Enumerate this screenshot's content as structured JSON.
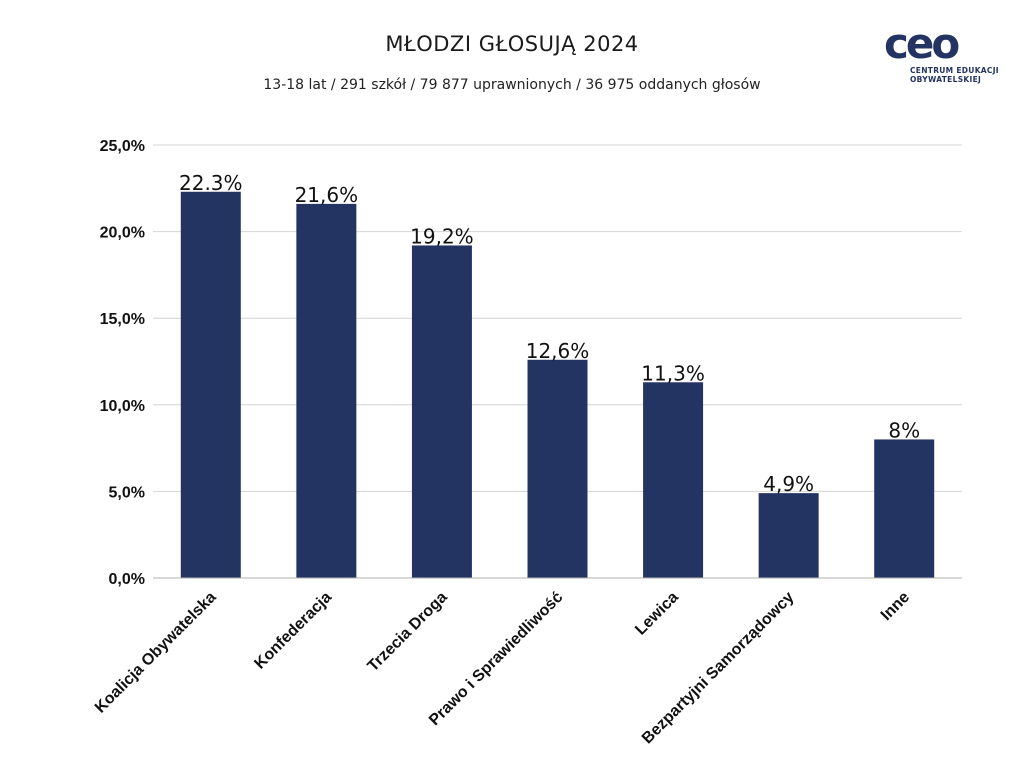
{
  "header": {
    "title": "MŁODZI GŁOSUJĄ 2024",
    "subtitle": "13-18 lat / 291 szkół / 79 877 uprawnionych / 36 975 oddanych głosów"
  },
  "logo": {
    "mark": "ceo",
    "line1": "CENTRUM EDUKACJI",
    "line2": "OBYWATELSKIEJ"
  },
  "colors": {
    "bar": "#243462",
    "grid": "#d4d4d4",
    "baseline": "#b0b0b0",
    "logo": "#243462"
  },
  "chart_data": {
    "type": "bar",
    "title": "MŁODZI GŁOSUJĄ 2024",
    "subtitle": "13-18 lat / 291 szkół / 79 877 uprawnionych / 36 975 oddanych głosów",
    "xlabel": "",
    "ylabel": "",
    "ylim": [
      0,
      25
    ],
    "yticks": [
      0,
      5,
      10,
      15,
      20,
      25
    ],
    "ytick_labels": [
      "0,0%",
      "5,0%",
      "10,0%",
      "15,0%",
      "20,0%",
      "25,0%"
    ],
    "grid": true,
    "legend": "none",
    "categories": [
      "Koalicja Obywatelska",
      "Konfederacja",
      "Trzecia Droga",
      "Prawo i Sprawiedliwość",
      "Lewica",
      "Bezpartyjni Samorządowcy",
      "Inne"
    ],
    "values": [
      22.3,
      21.6,
      19.2,
      12.6,
      11.3,
      4.9,
      8
    ],
    "data_labels": [
      "22.3%",
      "21,6%",
      "19,2%",
      "12,6%",
      "11,3%",
      "4,9%",
      "8%"
    ]
  }
}
